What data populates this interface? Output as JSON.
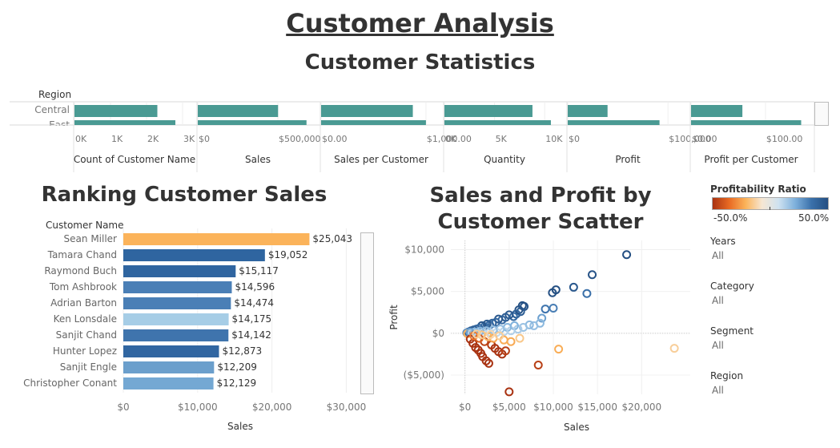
{
  "header": {
    "title": "Customer Analysis",
    "subtitle": "Customer Statistics"
  },
  "stats": {
    "row_header": "Region",
    "categories": [
      "Central",
      "East"
    ],
    "panels": [
      {
        "label": "Count of Customer Name",
        "ticks": [
          "0K",
          "1K",
          "2K",
          "3K"
        ],
        "max": 3.2,
        "values": [
          2.3,
          2.8
        ]
      },
      {
        "label": "Sales",
        "ticks": [
          "$0",
          "$500,000"
        ],
        "max": 720000,
        "values": [
          501240,
          678781
        ]
      },
      {
        "label": "Sales per Customer",
        "ticks": [
          "$0.00",
          "$1,000.00"
        ],
        "max": 1100,
        "values": [
          875,
          1000
        ]
      },
      {
        "label": "Quantity",
        "ticks": [
          "0K",
          "5K",
          "10K"
        ],
        "max": 11500,
        "values": [
          8780,
          10618
        ]
      },
      {
        "label": "Profit",
        "ticks": [
          "$0",
          "$100,000"
        ],
        "max": 115000,
        "values": [
          39706,
          91523
        ]
      },
      {
        "label": "Profit per Customer",
        "ticks": [
          "$0.00",
          "$100.00"
        ],
        "max": 155,
        "values": [
          69,
          148
        ]
      }
    ],
    "bar_color": "#4a9a93"
  },
  "ranking": {
    "title": "Ranking Customer Sales",
    "field_label": "Customer Name",
    "x_label": "Sales"
  },
  "scatter": {
    "title_line1": "Sales and Profit by",
    "title_line2": "Customer Scatter",
    "x_label": "Sales",
    "y_label": "Profit"
  },
  "legend": {
    "title": "Profitability Ratio",
    "min_label": "-50.0%",
    "max_label": "50.0%"
  },
  "filters": [
    {
      "label": "Years",
      "value": "All"
    },
    {
      "label": "Category",
      "value": "All"
    },
    {
      "label": "Segment",
      "value": "All"
    },
    {
      "label": "Region",
      "value": "All"
    }
  ],
  "chart_data": [
    {
      "type": "bar",
      "title": "Ranking Customer Sales",
      "categories": [
        "Sean Miller",
        "Tamara Chand",
        "Raymond Buch",
        "Tom Ashbrook",
        "Adrian Barton",
        "Ken Lonsdale",
        "Sanjit Chand",
        "Hunter Lopez",
        "Sanjit Engle",
        "Christopher Conant"
      ],
      "values": [
        25043,
        19052,
        15117,
        14596,
        14474,
        14175,
        14142,
        12873,
        12209,
        12129
      ],
      "labels": [
        "$25,043",
        "$19,052",
        "$15,117",
        "$14,596",
        "$14,474",
        "$14,175",
        "$14,142",
        "$12,873",
        "$12,209",
        "$12,129"
      ],
      "colors": [
        "#fbb35a",
        "#2f65a0",
        "#2f65a0",
        "#4a7fb6",
        "#4a7fb6",
        "#a6cde6",
        "#3f74ad",
        "#3166a1",
        "#6b9fcc",
        "#74a8d3"
      ],
      "xlabel": "Sales",
      "ylabel": "Customer Name",
      "xlim": [
        0,
        32000
      ],
      "xticks": [
        0,
        10000,
        20000,
        30000
      ],
      "xtick_labels": [
        "$0",
        "$10,000",
        "$20,000",
        "$30,000"
      ],
      "orientation": "horizontal"
    },
    {
      "type": "scatter",
      "title": "Sales and Profit by Customer Scatter",
      "xlabel": "Sales",
      "ylabel": "Profit",
      "xlim": [
        -1600,
        25500
      ],
      "ylim": [
        -7300,
        11100
      ],
      "xticks": [
        0,
        5000,
        10000,
        15000,
        20000
      ],
      "xtick_labels": [
        "$0",
        "$5,000",
        "$10,000",
        "$15,000",
        "$20,000"
      ],
      "yticks": [
        -5000,
        0,
        5000,
        10000
      ],
      "ytick_labels": [
        "($5,000)",
        "$0",
        "$5,000",
        "$10,000"
      ],
      "grid": true,
      "points": [
        [
          18300,
          9400,
          0.5
        ],
        [
          14400,
          7000,
          0.48
        ],
        [
          13800,
          4750,
          0.34
        ],
        [
          12300,
          5500,
          0.45
        ],
        [
          10300,
          5200,
          0.5
        ],
        [
          9900,
          4850,
          0.49
        ],
        [
          6700,
          3200,
          0.47
        ],
        [
          6500,
          3300,
          0.5
        ],
        [
          6300,
          2600,
          0.42
        ],
        [
          6100,
          2800,
          0.48
        ],
        [
          5800,
          2300,
          0.4
        ],
        [
          5500,
          2000,
          0.37
        ],
        [
          5000,
          2200,
          0.45
        ],
        [
          4600,
          1900,
          0.42
        ],
        [
          4200,
          1600,
          0.38
        ],
        [
          3800,
          1700,
          0.45
        ],
        [
          3500,
          1300,
          0.38
        ],
        [
          3100,
          1200,
          0.39
        ],
        [
          2800,
          1000,
          0.36
        ],
        [
          2500,
          1100,
          0.44
        ],
        [
          2200,
          800,
          0.36
        ],
        [
          1900,
          900,
          0.47
        ],
        [
          1600,
          600,
          0.37
        ],
        [
          1300,
          500,
          0.38
        ],
        [
          1000,
          400,
          0.4
        ],
        [
          700,
          300,
          0.43
        ],
        [
          400,
          150,
          0.38
        ],
        [
          200,
          50,
          0.25
        ],
        [
          300,
          -50,
          -0.17
        ],
        [
          8700,
          1800,
          0.21
        ],
        [
          9100,
          2900,
          0.32
        ],
        [
          10000,
          3000,
          0.3
        ],
        [
          8500,
          1200,
          0.14
        ],
        [
          7800,
          900,
          0.12
        ],
        [
          7300,
          1000,
          0.14
        ],
        [
          6600,
          700,
          0.11
        ],
        [
          6000,
          500,
          0.08
        ],
        [
          5600,
          900,
          0.16
        ],
        [
          5200,
          300,
          0.06
        ],
        [
          4800,
          700,
          0.15
        ],
        [
          4400,
          200,
          0.05
        ],
        [
          4000,
          500,
          0.12
        ],
        [
          3600,
          100,
          0.03
        ],
        [
          3200,
          400,
          0.12
        ],
        [
          2800,
          100,
          0.04
        ],
        [
          2400,
          300,
          0.12
        ],
        [
          2000,
          50,
          0.03
        ],
        [
          1700,
          250,
          0.15
        ],
        [
          1400,
          80,
          0.06
        ],
        [
          1100,
          150,
          0.14
        ],
        [
          800,
          40,
          0.05
        ],
        [
          600,
          120,
          0.2
        ],
        [
          23700,
          -1800,
          -0.08
        ],
        [
          10600,
          -1900,
          -0.18
        ],
        [
          8300,
          -3800,
          -0.46
        ],
        [
          5000,
          -7000,
          -0.5
        ],
        [
          2700,
          -3600,
          -0.5
        ],
        [
          2400,
          -3300,
          -0.5
        ],
        [
          2000,
          -2800,
          -0.5
        ],
        [
          1800,
          -2400,
          -0.5
        ],
        [
          1500,
          -2000,
          -0.5
        ],
        [
          1200,
          -1700,
          -0.5
        ],
        [
          900,
          -1200,
          -0.5
        ],
        [
          600,
          -700,
          -0.5
        ],
        [
          3000,
          -1400,
          -0.47
        ],
        [
          3400,
          -1800,
          -0.5
        ],
        [
          3800,
          -2200,
          -0.5
        ],
        [
          4200,
          -2500,
          -0.5
        ],
        [
          4600,
          -2100,
          -0.46
        ],
        [
          2200,
          -1000,
          -0.45
        ],
        [
          1600,
          -600,
          -0.38
        ],
        [
          1000,
          -300,
          -0.3
        ],
        [
          3200,
          -600,
          -0.19
        ],
        [
          2600,
          -400,
          -0.15
        ],
        [
          1900,
          -200,
          -0.11
        ],
        [
          4400,
          -800,
          -0.18
        ],
        [
          5200,
          -1000,
          -0.19
        ],
        [
          6200,
          -600,
          -0.1
        ],
        [
          3900,
          -300,
          -0.08
        ],
        [
          2900,
          -150,
          -0.05
        ],
        [
          1300,
          -100,
          -0.08
        ]
      ]
    }
  ]
}
